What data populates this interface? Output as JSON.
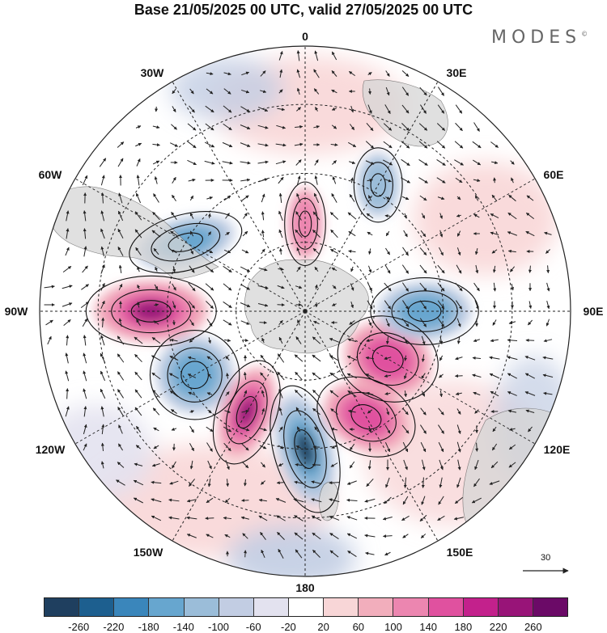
{
  "title": "Base 21/05/2025 00 UTC, valid 27/05/2025 00 UTC",
  "brand": "MODES",
  "brand_mark": "©",
  "longitude_labels": {
    "top": "0",
    "deg30e": "30E",
    "deg60e": "60E",
    "deg90e": "90E",
    "deg120e": "120E",
    "deg150e": "150E",
    "bottom": "180",
    "deg150w": "150W",
    "deg120w": "120W",
    "deg90w": "90W",
    "deg60w": "60W",
    "deg30w": "30W"
  },
  "wind_reference": {
    "value": "30",
    "icon": "arrow-right-icon"
  },
  "colorbar": {
    "colors": [
      "#1f3f5f",
      "#1d5f8f",
      "#3a86bb",
      "#67a6cf",
      "#9bbdd9",
      "#c2cde3",
      "#e3e2ef",
      "#ffffff",
      "#f8d6d7",
      "#f2aebc",
      "#ec86b0",
      "#e0519f",
      "#c3218c",
      "#981478",
      "#6b0a67"
    ],
    "ticks": [
      "-260",
      "-220",
      "-180",
      "-140",
      "-100",
      "-60",
      "-20",
      "20",
      "60",
      "100",
      "140",
      "180",
      "220",
      "260"
    ]
  },
  "map_data": {
    "projection": "south polar stereographic",
    "anomalies": [
      {
        "lon_label": "90W",
        "value": 240,
        "color": "#981478"
      },
      {
        "lon_label": "60W",
        "value": -160,
        "color": "#3a86bb"
      },
      {
        "lon_label": "120W",
        "value": -180,
        "color": "#3a86bb"
      },
      {
        "lon_label": "150W",
        "value": 240,
        "color": "#981478"
      },
      {
        "lon_label": "180",
        "value": -240,
        "color": "#1f3f5f"
      },
      {
        "lon_label": "150E",
        "value": 160,
        "color": "#e0519f"
      },
      {
        "lon_label": "120E",
        "value": 180,
        "color": "#e0519f"
      },
      {
        "lon_label": "90E",
        "value": -180,
        "color": "#3a86bb"
      },
      {
        "lon_label": "30E",
        "value": -120,
        "color": "#67a6cf"
      },
      {
        "lon_label": "0",
        "value": 120,
        "color": "#ec86b0"
      }
    ]
  }
}
